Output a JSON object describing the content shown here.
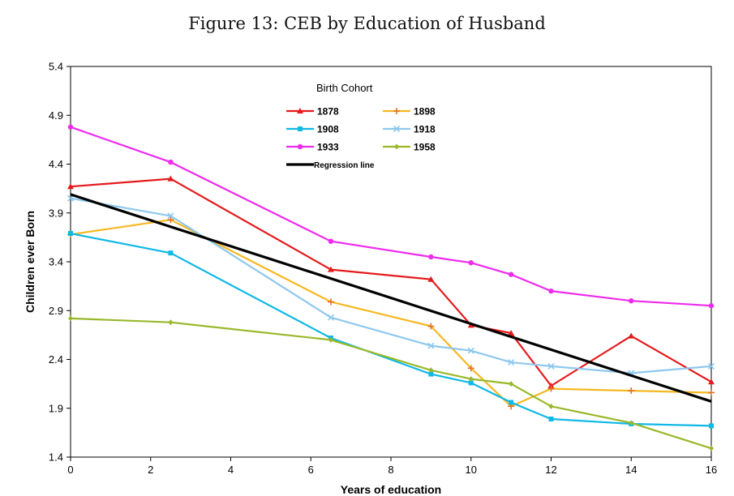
{
  "figure_title": "Figure 13: CEB by Education of Husband",
  "chart_data": {
    "type": "line",
    "title": "Figure 13: CEB by Education of Husband",
    "xlabel": "Years of education",
    "ylabel": "Children ever Born",
    "xlim": [
      0,
      16
    ],
    "ylim": [
      1.4,
      5.4
    ],
    "xticks": [
      0,
      2,
      4,
      6,
      8,
      10,
      12,
      14,
      16
    ],
    "yticks": [
      1.4,
      1.9,
      2.4,
      2.9,
      3.4,
      3.9,
      4.4,
      4.9,
      5.4
    ],
    "ytick_labels": [
      "1.4",
      "1.9",
      "2.4",
      "2.9",
      "3.4",
      "3.9",
      "4.4",
      "4.9",
      "5.4"
    ],
    "grid": false,
    "legend_title": "Birth Cohort",
    "legend_position": "top-center",
    "x": [
      0,
      2.5,
      6.5,
      9,
      10,
      11,
      12,
      14,
      16
    ],
    "series": [
      {
        "name": "1878",
        "color": "#e41a1c",
        "marker": "triangle",
        "values": [
          4.17,
          4.25,
          3.32,
          3.22,
          2.75,
          2.67,
          2.13,
          2.64,
          2.17
        ]
      },
      {
        "name": "1898",
        "color": "#f5b820",
        "marker": "plus",
        "values": [
          3.68,
          3.83,
          2.99,
          2.74,
          2.31,
          1.92,
          2.1,
          2.08,
          2.06
        ]
      },
      {
        "name": "1908",
        "color": "#10b8e6",
        "marker": "square",
        "values": [
          3.69,
          3.49,
          2.62,
          2.25,
          2.16,
          1.96,
          1.79,
          1.74,
          1.72
        ]
      },
      {
        "name": "1918",
        "color": "#8ec8ee",
        "marker": "x",
        "values": [
          4.05,
          3.87,
          2.83,
          2.54,
          2.49,
          2.37,
          2.33,
          2.26,
          2.33
        ]
      },
      {
        "name": "1933",
        "color": "#ee2aee",
        "marker": "circle",
        "values": [
          4.78,
          4.42,
          3.61,
          3.45,
          3.39,
          3.27,
          3.1,
          3.0,
          2.95
        ]
      },
      {
        "name": "1958",
        "color": "#99b82a",
        "marker": "diamond",
        "values": [
          2.82,
          2.78,
          2.6,
          2.29,
          2.2,
          2.15,
          1.92,
          1.75,
          1.49
        ]
      },
      {
        "name": "Regression line",
        "color": "#000000",
        "marker": "none",
        "x": [
          0,
          16
        ],
        "values": [
          4.09,
          1.97
        ]
      }
    ]
  }
}
